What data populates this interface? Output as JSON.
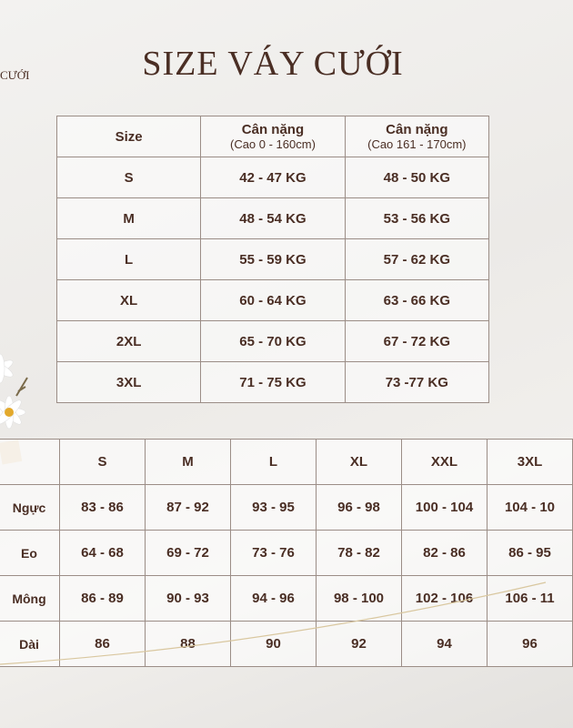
{
  "brand": "CƯỚI",
  "title": "SIZE VÁY CƯỚI",
  "weight_table": {
    "headers": [
      {
        "label": "Size",
        "sub": ""
      },
      {
        "label": "Cân nặng",
        "sub": "(Cao 0 - 160cm)"
      },
      {
        "label": "Cân nặng",
        "sub": "(Cao 161 - 170cm)"
      }
    ],
    "rows": [
      [
        "S",
        "42 - 47 KG",
        "48 - 50 KG"
      ],
      [
        "M",
        "48 - 54 KG",
        "53 - 56 KG"
      ],
      [
        "L",
        "55 - 59 KG",
        "57 - 62 KG"
      ],
      [
        "XL",
        "60 - 64 KG",
        "63 - 66 KG"
      ],
      [
        "2XL",
        "65 - 70 KG",
        "67 - 72 KG"
      ],
      [
        "3XL",
        "71 - 75 KG",
        "73 -77 KG"
      ]
    ]
  },
  "measure_table": {
    "headers": [
      "",
      "S",
      "M",
      "L",
      "XL",
      "XXL",
      "3XL"
    ],
    "rows": [
      [
        "Ngực",
        "83 - 86",
        "87 - 92",
        "93 - 95",
        "96 - 98",
        "100 - 104",
        "104 - 10"
      ],
      [
        "Eo",
        "64 - 68",
        "69 - 72",
        "73 - 76",
        "78 - 82",
        "82 - 86",
        "86 - 95"
      ],
      [
        "Mông",
        "86 - 89",
        "90 - 93",
        "94 - 96",
        "98 - 100",
        "102 - 106",
        "106 - 11"
      ],
      [
        "Dài",
        "86",
        "88",
        "90",
        "92",
        "94",
        "96"
      ]
    ]
  },
  "colors": {
    "text": "#4a2e24",
    "border": "#9b8d86",
    "accent_gold": "#d9c79f"
  }
}
